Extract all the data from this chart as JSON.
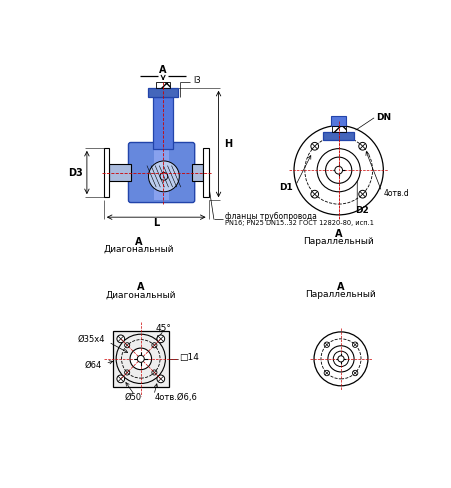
{
  "bg_color": "#ffffff",
  "line_color": "#000000",
  "blue_dark": "#1a3a8a",
  "blue_mid": "#4466cc",
  "blue_stem": "#5577dd",
  "blue_body": "#6688dd",
  "blue_collar": "#4466bb",
  "blue_light": "#88aaee",
  "gray_pipe": "#aabbdd",
  "label_flange": "фланцы трубопровода",
  "label_gost": "PN16; PN25 DN15..32 ГОСТ 12820-80, исп.1",
  "dim_l3": "l3",
  "dim_H": "H",
  "dim_D3": "D3",
  "dim_L": "L",
  "dim_DN": "DN",
  "dim_D1": "D1",
  "dim_D2": "D2",
  "dim_4otv_d": "4отв.d",
  "dim_d35x4": "Ø35х4",
  "dim_45": "45°",
  "dim_14": "□14",
  "dim_d64": "Ø64",
  "dim_d50": "Ø50",
  "dim_4otv_d66": "4отв.Ø6,6",
  "label_diag": "Диагональный",
  "label_parallel": "Параллельный"
}
